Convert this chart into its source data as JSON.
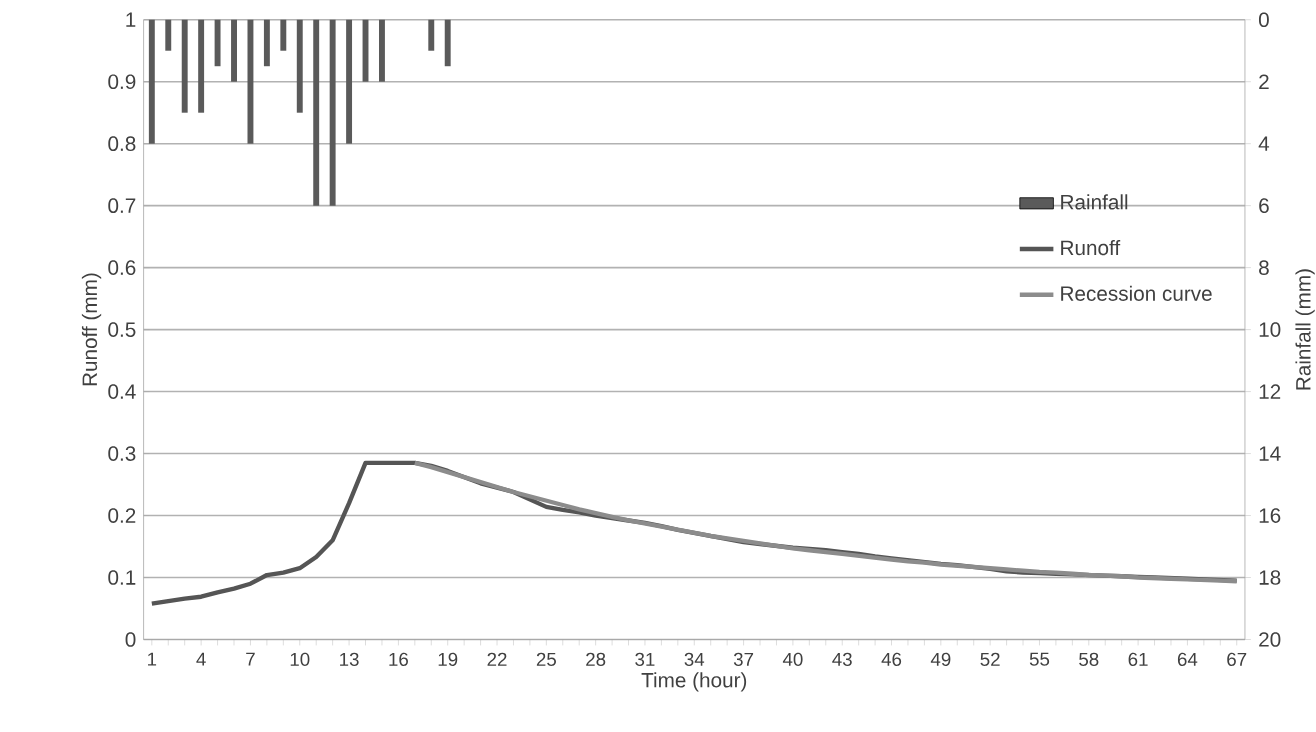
{
  "chart_data": {
    "type": "line",
    "xlabel": "Time (hour)",
    "ylabel": "Runoff (mm)",
    "y2label": "Rainfall (mm)",
    "categories": [
      "1",
      null,
      null,
      "4",
      null,
      null,
      "7",
      null,
      null,
      "10",
      null,
      null,
      "13",
      null,
      null,
      "16",
      null,
      null,
      "19",
      null,
      null,
      "22",
      null,
      null,
      "25",
      null,
      null,
      "28",
      null,
      null,
      "31",
      null,
      null,
      "34",
      null,
      null,
      "37",
      null,
      null,
      "40",
      null,
      null,
      "43",
      null,
      null,
      "46",
      null,
      null,
      "49",
      null,
      null,
      "52",
      null,
      null,
      "55",
      null,
      null,
      "58",
      null,
      null,
      "61",
      null,
      null,
      "64",
      null,
      null,
      "67"
    ],
    "ylim": [
      0,
      1
    ],
    "yticks": [
      0,
      0.1,
      0.2,
      0.3,
      0.4,
      0.5,
      0.6,
      0.7,
      0.8,
      0.9,
      1
    ],
    "y2lim": [
      20,
      0
    ],
    "y2ticks": [
      0,
      2,
      4,
      6,
      8,
      10,
      12,
      14,
      16,
      18,
      20
    ],
    "grid": "y",
    "legend": "right",
    "series": [
      {
        "name": "Rainfall",
        "type": "bar",
        "axis": "y2",
        "color": "#5a5a5a",
        "values": [
          4,
          1,
          3,
          3,
          1.5,
          2,
          4,
          1.5,
          1,
          3,
          6,
          6,
          4,
          2,
          2,
          null,
          null,
          1,
          1.5,
          null,
          null,
          null,
          null,
          null,
          null,
          null,
          null,
          null,
          null,
          null,
          null,
          null,
          null,
          null,
          null,
          null,
          null,
          null,
          null,
          null,
          null,
          null,
          null,
          null,
          null,
          null,
          null,
          null,
          null,
          null,
          null,
          null,
          null,
          null,
          null,
          null,
          null,
          null,
          null,
          null,
          null,
          null,
          null,
          null,
          null,
          null,
          null
        ]
      },
      {
        "name": "Runoff",
        "color": "#555555",
        "values": [
          0.058,
          0.062,
          0.066,
          0.069,
          0.076,
          0.082,
          0.09,
          0.104,
          0.108,
          0.115,
          0.133,
          0.16,
          0.22,
          0.285,
          0.285,
          0.285,
          0.285,
          0.28,
          0.272,
          0.262,
          0.252,
          0.245,
          0.238,
          0.226,
          0.214,
          0.209,
          0.205,
          0.2,
          0.196,
          0.192,
          0.188,
          0.183,
          0.177,
          0.172,
          0.167,
          0.162,
          0.157,
          0.154,
          0.151,
          0.148,
          0.146,
          0.144,
          0.141,
          0.138,
          0.134,
          0.131,
          0.128,
          0.125,
          0.122,
          0.12,
          0.117,
          0.114,
          0.11,
          0.108,
          0.107,
          0.106,
          0.105,
          0.104,
          0.103,
          0.102,
          0.101,
          0.1,
          0.099,
          0.098,
          0.097,
          0.096,
          0.095
        ]
      },
      {
        "name": "Recession curve",
        "color": "#8c8c8c",
        "values": [
          null,
          null,
          null,
          null,
          null,
          null,
          null,
          null,
          null,
          null,
          null,
          null,
          null,
          null,
          null,
          null,
          0.285,
          0.278,
          0.27,
          0.262,
          0.254,
          0.246,
          0.238,
          0.231,
          0.224,
          0.217,
          0.21,
          0.204,
          0.198,
          0.192,
          0.187,
          0.182,
          0.177,
          0.172,
          0.167,
          0.163,
          0.159,
          0.155,
          0.151,
          0.147,
          0.144,
          0.141,
          0.138,
          0.135,
          0.132,
          0.129,
          0.126,
          0.124,
          0.121,
          0.119,
          0.117,
          0.115,
          0.113,
          0.111,
          0.109,
          0.108,
          0.106,
          0.104,
          0.103,
          0.102,
          0.1,
          0.099,
          0.098,
          0.097,
          0.096,
          0.095,
          0.094
        ]
      }
    ]
  }
}
